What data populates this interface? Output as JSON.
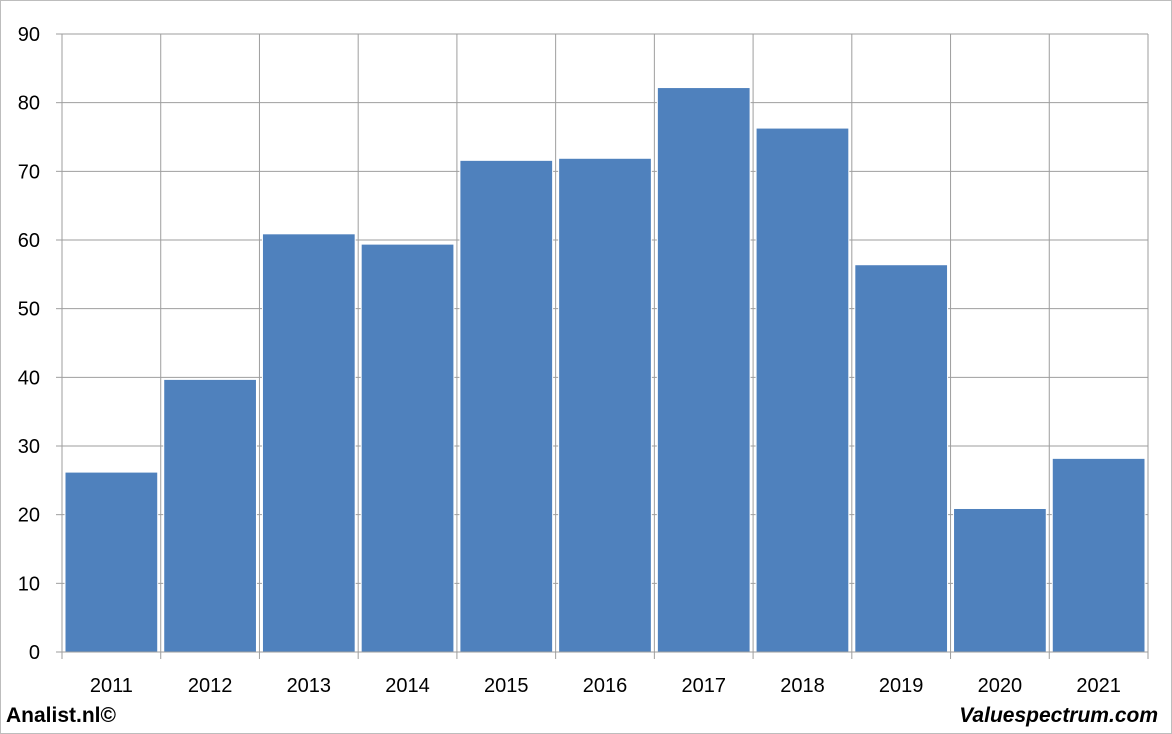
{
  "chart_data": {
    "type": "bar",
    "categories": [
      "2011",
      "2012",
      "2013",
      "2014",
      "2015",
      "2016",
      "2017",
      "2018",
      "2019",
      "2020",
      "2021"
    ],
    "values": [
      26.2,
      39.7,
      60.9,
      59.4,
      71.6,
      71.9,
      82.2,
      76.3,
      56.4,
      20.9,
      28.2
    ],
    "title": "",
    "xlabel": "",
    "ylabel": "",
    "ylim": [
      0,
      90
    ],
    "yticks": [
      "0",
      "10",
      "20",
      "30",
      "40",
      "50",
      "60",
      "70",
      "80",
      "90"
    ],
    "grid": true,
    "legend": "none",
    "bar_color": "#4f81bd",
    "grid_color": "#9e9e9e"
  },
  "footer": {
    "left": "Analist.nl©",
    "right": "Valuespectrum.com"
  }
}
